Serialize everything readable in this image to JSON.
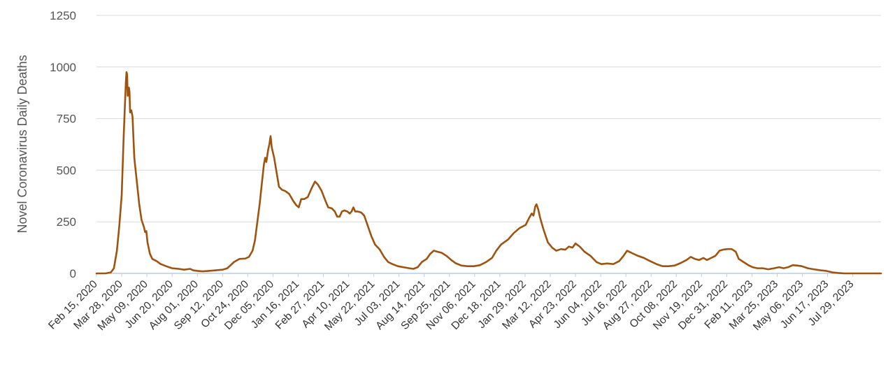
{
  "chart_data": {
    "type": "line",
    "title": "",
    "xlabel": "",
    "ylabel": "Novel Coronavirus Daily Deaths",
    "ylim": [
      0,
      1250
    ],
    "yticks": [
      "0",
      "250",
      "500",
      "750",
      "1000",
      "1250"
    ],
    "ytick_values": [
      0,
      250,
      500,
      750,
      1000,
      1250
    ],
    "xlim": [
      "2020-02-15",
      "2023-09-14"
    ],
    "xticks": [
      {
        "date": "2020-02-15",
        "label": "Feb 15, 2020"
      },
      {
        "date": "2020-03-28",
        "label": "Mar 28, 2020"
      },
      {
        "date": "2020-05-09",
        "label": "May 09, 2020"
      },
      {
        "date": "2020-06-20",
        "label": "Jun 20, 2020"
      },
      {
        "date": "2020-08-01",
        "label": "Aug 01, 2020"
      },
      {
        "date": "2020-09-12",
        "label": "Sep 12, 2020"
      },
      {
        "date": "2020-10-24",
        "label": "Oct 24, 2020"
      },
      {
        "date": "2020-12-05",
        "label": "Dec 05, 2020"
      },
      {
        "date": "2021-01-16",
        "label": "Jan 16, 2021"
      },
      {
        "date": "2021-02-27",
        "label": "Feb 27, 2021"
      },
      {
        "date": "2021-04-10",
        "label": "Apr 10, 2021"
      },
      {
        "date": "2021-05-22",
        "label": "May 22, 2021"
      },
      {
        "date": "2021-07-03",
        "label": "Jul 03, 2021"
      },
      {
        "date": "2021-08-14",
        "label": "Aug 14, 2021"
      },
      {
        "date": "2021-09-25",
        "label": "Sep 25, 2021"
      },
      {
        "date": "2021-11-06",
        "label": "Nov 06, 2021"
      },
      {
        "date": "2021-12-18",
        "label": "Dec 18, 2021"
      },
      {
        "date": "2022-01-29",
        "label": "Jan 29, 2022"
      },
      {
        "date": "2022-03-12",
        "label": "Mar 12, 2022"
      },
      {
        "date": "2022-04-23",
        "label": "Apr 23, 2022"
      },
      {
        "date": "2022-06-04",
        "label": "Jun 04, 2022"
      },
      {
        "date": "2022-07-16",
        "label": "Jul 16, 2022"
      },
      {
        "date": "2022-08-27",
        "label": "Aug 27, 2022"
      },
      {
        "date": "2022-10-08",
        "label": "Oct 08, 2022"
      },
      {
        "date": "2022-11-19",
        "label": "Nov 19, 2022"
      },
      {
        "date": "2022-12-31",
        "label": "Dec 31, 2022"
      },
      {
        "date": "2023-02-11",
        "label": "Feb 11, 2023"
      },
      {
        "date": "2023-03-25",
        "label": "Mar 25, 2023"
      },
      {
        "date": "2023-05-06",
        "label": "May 06, 2023"
      },
      {
        "date": "2023-06-17",
        "label": "Jun 17, 2023"
      },
      {
        "date": "2023-07-29",
        "label": "Jul 29, 2023"
      }
    ],
    "grid": true,
    "legend": "none",
    "series": [
      {
        "color": "#a0520f",
        "points": [
          [
            "2020-02-15",
            0
          ],
          [
            "2020-03-01",
            0
          ],
          [
            "2020-03-10",
            5
          ],
          [
            "2020-03-15",
            25
          ],
          [
            "2020-03-20",
            110
          ],
          [
            "2020-03-24",
            230
          ],
          [
            "2020-03-28",
            380
          ],
          [
            "2020-03-31",
            640
          ],
          [
            "2020-04-02",
            790
          ],
          [
            "2020-04-04",
            930
          ],
          [
            "2020-04-05",
            975
          ],
          [
            "2020-04-06",
            965
          ],
          [
            "2020-04-07",
            860
          ],
          [
            "2020-04-08",
            880
          ],
          [
            "2020-04-09",
            900
          ],
          [
            "2020-04-10",
            880
          ],
          [
            "2020-04-11",
            780
          ],
          [
            "2020-04-13",
            790
          ],
          [
            "2020-04-15",
            760
          ],
          [
            "2020-04-18",
            560
          ],
          [
            "2020-04-22",
            450
          ],
          [
            "2020-04-26",
            340
          ],
          [
            "2020-04-30",
            260
          ],
          [
            "2020-05-04",
            225
          ],
          [
            "2020-05-06",
            200
          ],
          [
            "2020-05-08",
            205
          ],
          [
            "2020-05-10",
            150
          ],
          [
            "2020-05-14",
            95
          ],
          [
            "2020-05-18",
            70
          ],
          [
            "2020-05-25",
            60
          ],
          [
            "2020-06-01",
            45
          ],
          [
            "2020-06-10",
            35
          ],
          [
            "2020-06-20",
            25
          ],
          [
            "2020-07-01",
            22
          ],
          [
            "2020-07-10",
            18
          ],
          [
            "2020-07-20",
            22
          ],
          [
            "2020-07-25",
            15
          ],
          [
            "2020-08-01",
            12
          ],
          [
            "2020-08-10",
            10
          ],
          [
            "2020-08-20",
            12
          ],
          [
            "2020-09-01",
            15
          ],
          [
            "2020-09-12",
            18
          ],
          [
            "2020-09-20",
            25
          ],
          [
            "2020-10-01",
            55
          ],
          [
            "2020-10-10",
            70
          ],
          [
            "2020-10-20",
            72
          ],
          [
            "2020-10-26",
            80
          ],
          [
            "2020-11-01",
            110
          ],
          [
            "2020-11-05",
            160
          ],
          [
            "2020-11-09",
            250
          ],
          [
            "2020-11-13",
            340
          ],
          [
            "2020-11-17",
            450
          ],
          [
            "2020-11-20",
            530
          ],
          [
            "2020-11-22",
            560
          ],
          [
            "2020-11-24",
            540
          ],
          [
            "2020-11-27",
            600
          ],
          [
            "2020-11-29",
            625
          ],
          [
            "2020-12-01",
            665
          ],
          [
            "2020-12-03",
            610
          ],
          [
            "2020-12-07",
            560
          ],
          [
            "2020-12-11",
            490
          ],
          [
            "2020-12-15",
            420
          ],
          [
            "2020-12-20",
            405
          ],
          [
            "2020-12-25",
            400
          ],
          [
            "2021-01-01",
            385
          ],
          [
            "2021-01-08",
            350
          ],
          [
            "2021-01-13",
            330
          ],
          [
            "2021-01-17",
            320
          ],
          [
            "2021-01-21",
            360
          ],
          [
            "2021-01-26",
            360
          ],
          [
            "2021-02-01",
            370
          ],
          [
            "2021-02-07",
            410
          ],
          [
            "2021-02-13",
            445
          ],
          [
            "2021-02-18",
            430
          ],
          [
            "2021-02-24",
            400
          ],
          [
            "2021-03-02",
            355
          ],
          [
            "2021-03-07",
            320
          ],
          [
            "2021-03-13",
            315
          ],
          [
            "2021-03-18",
            300
          ],
          [
            "2021-03-22",
            275
          ],
          [
            "2021-03-26",
            275
          ],
          [
            "2021-03-30",
            300
          ],
          [
            "2021-04-03",
            305
          ],
          [
            "2021-04-08",
            300
          ],
          [
            "2021-04-12",
            290
          ],
          [
            "2021-04-15",
            300
          ],
          [
            "2021-04-18",
            320
          ],
          [
            "2021-04-21",
            300
          ],
          [
            "2021-04-25",
            300
          ],
          [
            "2021-05-01",
            295
          ],
          [
            "2021-05-06",
            280
          ],
          [
            "2021-05-12",
            230
          ],
          [
            "2021-05-18",
            180
          ],
          [
            "2021-05-24",
            140
          ],
          [
            "2021-06-01",
            115
          ],
          [
            "2021-06-08",
            80
          ],
          [
            "2021-06-15",
            55
          ],
          [
            "2021-06-22",
            45
          ],
          [
            "2021-07-01",
            35
          ],
          [
            "2021-07-10",
            30
          ],
          [
            "2021-07-20",
            25
          ],
          [
            "2021-07-27",
            22
          ],
          [
            "2021-08-03",
            30
          ],
          [
            "2021-08-10",
            55
          ],
          [
            "2021-08-18",
            70
          ],
          [
            "2021-08-24",
            95
          ],
          [
            "2021-08-30",
            110
          ],
          [
            "2021-09-05",
            105
          ],
          [
            "2021-09-12",
            100
          ],
          [
            "2021-09-20",
            85
          ],
          [
            "2021-09-28",
            65
          ],
          [
            "2021-10-05",
            50
          ],
          [
            "2021-10-15",
            38
          ],
          [
            "2021-10-25",
            35
          ],
          [
            "2021-11-05",
            35
          ],
          [
            "2021-11-15",
            40
          ],
          [
            "2021-11-25",
            55
          ],
          [
            "2021-12-05",
            75
          ],
          [
            "2021-12-12",
            110
          ],
          [
            "2021-12-20",
            140
          ],
          [
            "2022-01-01",
            165
          ],
          [
            "2022-01-10",
            195
          ],
          [
            "2022-01-20",
            220
          ],
          [
            "2022-01-30",
            235
          ],
          [
            "2022-02-05",
            270
          ],
          [
            "2022-02-09",
            290
          ],
          [
            "2022-02-12",
            280
          ],
          [
            "2022-02-15",
            325
          ],
          [
            "2022-02-17",
            335
          ],
          [
            "2022-02-20",
            310
          ],
          [
            "2022-02-23",
            270
          ],
          [
            "2022-03-01",
            210
          ],
          [
            "2022-03-08",
            150
          ],
          [
            "2022-03-15",
            125
          ],
          [
            "2022-03-22",
            110
          ],
          [
            "2022-03-30",
            118
          ],
          [
            "2022-04-06",
            115
          ],
          [
            "2022-04-12",
            130
          ],
          [
            "2022-04-18",
            125
          ],
          [
            "2022-04-23",
            145
          ],
          [
            "2022-04-30",
            130
          ],
          [
            "2022-05-08",
            105
          ],
          [
            "2022-05-18",
            85
          ],
          [
            "2022-05-28",
            55
          ],
          [
            "2022-06-05",
            45
          ],
          [
            "2022-06-15",
            48
          ],
          [
            "2022-06-25",
            45
          ],
          [
            "2022-07-05",
            60
          ],
          [
            "2022-07-12",
            85
          ],
          [
            "2022-07-18",
            110
          ],
          [
            "2022-07-25",
            100
          ],
          [
            "2022-08-05",
            85
          ],
          [
            "2022-08-15",
            75
          ],
          [
            "2022-08-25",
            60
          ],
          [
            "2022-09-05",
            45
          ],
          [
            "2022-09-15",
            35
          ],
          [
            "2022-09-25",
            35
          ],
          [
            "2022-10-05",
            38
          ],
          [
            "2022-10-15",
            50
          ],
          [
            "2022-10-25",
            65
          ],
          [
            "2022-11-01",
            80
          ],
          [
            "2022-11-08",
            70
          ],
          [
            "2022-11-15",
            65
          ],
          [
            "2022-11-22",
            75
          ],
          [
            "2022-11-28",
            65
          ],
          [
            "2022-12-05",
            75
          ],
          [
            "2022-12-12",
            85
          ],
          [
            "2022-12-19",
            110
          ],
          [
            "2022-12-25",
            115
          ],
          [
            "2023-01-01",
            118
          ],
          [
            "2023-01-08",
            118
          ],
          [
            "2023-01-15",
            105
          ],
          [
            "2023-01-20",
            70
          ],
          [
            "2023-01-28",
            55
          ],
          [
            "2023-02-05",
            40
          ],
          [
            "2023-02-12",
            30
          ],
          [
            "2023-02-20",
            25
          ],
          [
            "2023-03-01",
            25
          ],
          [
            "2023-03-10",
            20
          ],
          [
            "2023-03-20",
            25
          ],
          [
            "2023-03-28",
            30
          ],
          [
            "2023-04-05",
            25
          ],
          [
            "2023-04-12",
            30
          ],
          [
            "2023-04-20",
            40
          ],
          [
            "2023-04-28",
            38
          ],
          [
            "2023-05-05",
            35
          ],
          [
            "2023-05-15",
            25
          ],
          [
            "2023-05-25",
            20
          ],
          [
            "2023-06-05",
            15
          ],
          [
            "2023-06-15",
            12
          ],
          [
            "2023-06-25",
            5
          ],
          [
            "2023-07-05",
            2
          ],
          [
            "2023-07-15",
            0
          ],
          [
            "2023-09-14",
            0
          ]
        ]
      }
    ]
  }
}
